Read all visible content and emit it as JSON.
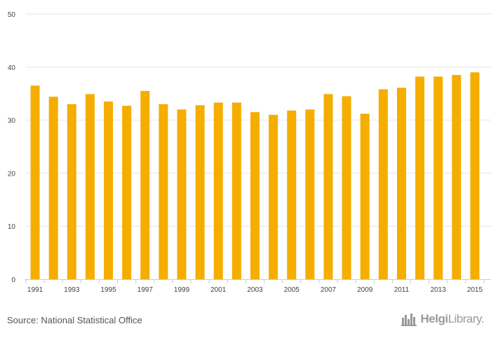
{
  "chart_data": {
    "type": "bar",
    "categories": [
      "1991",
      "1992",
      "1993",
      "1994",
      "1995",
      "1996",
      "1997",
      "1998",
      "1999",
      "2000",
      "2001",
      "2002",
      "2003",
      "2004",
      "2005",
      "2006",
      "2007",
      "2008",
      "2009",
      "2010",
      "2011",
      "2012",
      "2013",
      "2014",
      "2015"
    ],
    "x_tick_labels": [
      "1991",
      "1993",
      "1995",
      "1997",
      "1999",
      "2001",
      "2003",
      "2005",
      "2007",
      "2009",
      "2011",
      "2013",
      "2015"
    ],
    "values": [
      36.5,
      34.4,
      33.0,
      34.9,
      33.5,
      32.7,
      35.5,
      33.0,
      32.0,
      32.8,
      33.3,
      33.3,
      31.5,
      31.0,
      31.8,
      32.0,
      34.9,
      34.5,
      31.2,
      35.8,
      36.1,
      38.2,
      38.2,
      38.5,
      39.0
    ],
    "ylim": [
      0,
      50
    ],
    "y_ticks": [
      "0",
      "10",
      "20",
      "30",
      "40",
      "50"
    ],
    "grid": true,
    "bar_color": "#f5ad00",
    "title": "",
    "xlabel": "",
    "ylabel": ""
  },
  "footer": {
    "source": "Source: National Statistical Office",
    "logo_text_bold": "Helgi",
    "logo_text": "Library.",
    "logo_icon": "city-skyline-icon"
  }
}
